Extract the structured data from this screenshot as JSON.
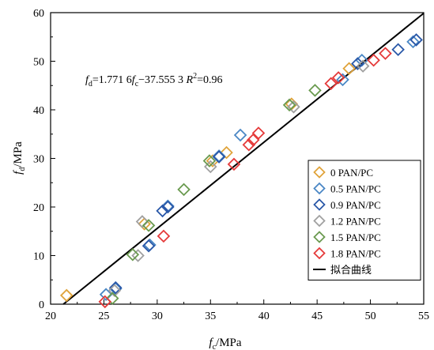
{
  "chart_data": {
    "type": "scatter",
    "xlabel": {
      "main": "f",
      "sub": "c",
      "unit": "/MPa"
    },
    "ylabel": {
      "main": "f",
      "sub": "d",
      "unit": "/MPa"
    },
    "xlim": [
      20,
      55
    ],
    "ylim": [
      0,
      60
    ],
    "xticks": [
      "20",
      "25",
      "30",
      "35",
      "40",
      "45",
      "50",
      "55"
    ],
    "yticks": [
      "0",
      "10",
      "20",
      "30",
      "40",
      "50",
      "60"
    ],
    "grid": false,
    "legend_position": "bottom-right",
    "equation": {
      "fd": "f",
      "fd_sub": "d",
      "eq1": "=1.771 6",
      "fc": "f",
      "fc_sub": "c",
      "eq2": "−37.555 3 ",
      "r": "R",
      "r_sup": "2",
      "r_val": "=0.96"
    },
    "series": [
      {
        "name": "0 PAN/PC",
        "color": "#e0a33a",
        "points": [
          [
            21.5,
            1.8
          ],
          [
            28.8,
            16.5
          ],
          [
            35.2,
            29.5
          ],
          [
            36.5,
            31.2
          ],
          [
            42.6,
            41.2
          ],
          [
            48,
            48.5
          ]
        ]
      },
      {
        "name": "0.5 PAN/PC",
        "color": "#4a87c5",
        "points": [
          [
            25.2,
            2.0
          ],
          [
            26.1,
            3.2
          ],
          [
            29.3,
            12.2
          ],
          [
            31,
            20.2
          ],
          [
            35.8,
            30.5
          ],
          [
            37.8,
            34.8
          ],
          [
            47.4,
            46.2
          ],
          [
            49.2,
            50.2
          ],
          [
            54,
            54
          ]
        ]
      },
      {
        "name": "0.9 PAN/PC",
        "color": "#2a58a8",
        "points": [
          [
            26.1,
            3.4
          ],
          [
            29.2,
            12.0
          ],
          [
            30.5,
            19.2
          ],
          [
            31,
            20.0
          ],
          [
            35.8,
            30.3
          ],
          [
            48.8,
            49.5
          ],
          [
            52.6,
            52.4
          ],
          [
            54.3,
            54.4
          ]
        ]
      },
      {
        "name": "1.2 PAN/PC",
        "color": "#a0a0a0",
        "points": [
          [
            26,
            2.8
          ],
          [
            28.2,
            10.0
          ],
          [
            28.6,
            17.0
          ],
          [
            35,
            28.3
          ],
          [
            42.8,
            40.6
          ],
          [
            49.3,
            49.0
          ]
        ]
      },
      {
        "name": "1.5 PAN/PC",
        "color": "#6a9a4f",
        "points": [
          [
            25.8,
            1.2
          ],
          [
            27.7,
            10.2
          ],
          [
            29.2,
            16.2
          ],
          [
            32.5,
            23.6
          ],
          [
            34.9,
            29.5
          ],
          [
            42.4,
            41.0
          ],
          [
            44.8,
            44.0
          ]
        ]
      },
      {
        "name": "1.8 PAN/PC",
        "color": "#e53a3a",
        "points": [
          [
            25.1,
            0.5
          ],
          [
            30.6,
            14.0
          ],
          [
            37.2,
            28.8
          ],
          [
            38.6,
            32.8
          ],
          [
            39,
            33.8
          ],
          [
            39.5,
            35.2
          ],
          [
            46.3,
            45.4
          ],
          [
            47,
            46.6
          ],
          [
            50.3,
            50.2
          ],
          [
            51.4,
            51.6
          ]
        ]
      }
    ],
    "fit": {
      "name": "拟合曲线",
      "color": "#000000",
      "slope": 1.7716,
      "intercept": -37.5553
    }
  }
}
